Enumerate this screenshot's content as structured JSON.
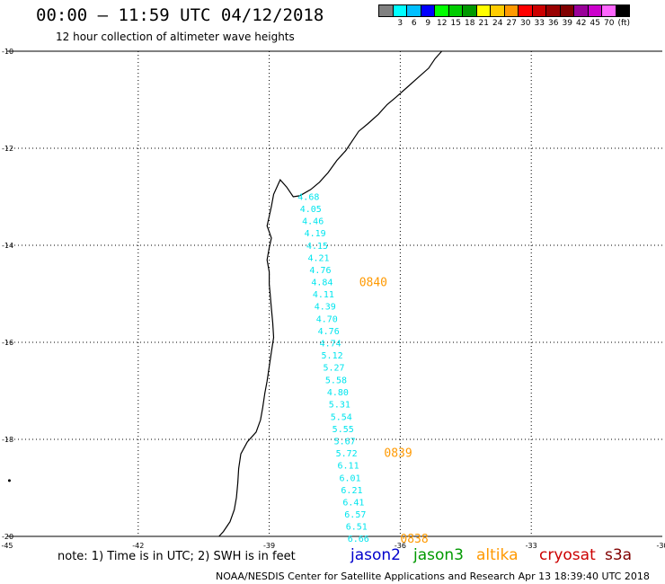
{
  "title": "00:00 – 11:59 UTC 04/12/2018",
  "subtitle": "12 hour collection of altimeter wave heights",
  "colorbar": {
    "colors": [
      "#808080",
      "#00ffff",
      "#00bfff",
      "#0000ff",
      "#00ff00",
      "#00cc00",
      "#009900",
      "#ffff00",
      "#ffcc00",
      "#ff9900",
      "#ff0000",
      "#cc0000",
      "#990000",
      "#800000",
      "#990099",
      "#cc00cc",
      "#ff66ff",
      "#000000"
    ],
    "labels": [
      "3",
      "6",
      "9",
      "12",
      "15",
      "18",
      "21",
      "24",
      "27",
      "30",
      "33",
      "36",
      "39",
      "42",
      "45",
      "70"
    ],
    "unit": "(ft)"
  },
  "axes": {
    "lon_ticks": [
      "-45",
      "-42",
      "-39",
      "-36",
      "-33",
      "-30"
    ],
    "lat_ticks": [
      "-10",
      "-12",
      "-14",
      "-16",
      "-18",
      "-20"
    ],
    "lon_range": [
      -45,
      -30
    ],
    "lat_range": [
      -20,
      -10
    ]
  },
  "track": {
    "color": "#00e5ee",
    "points": [
      {
        "v": "4.68",
        "lon": -38.1,
        "lat": -12.99
      },
      {
        "v": "4.05",
        "lon": -38.05,
        "lat": -13.24
      },
      {
        "v": "4.46",
        "lon": -38.0,
        "lat": -13.49
      },
      {
        "v": "4.19",
        "lon": -37.95,
        "lat": -13.74
      },
      {
        "v": "4.15",
        "lon": -37.9,
        "lat": -14.0
      },
      {
        "v": "4.21",
        "lon": -37.87,
        "lat": -14.25
      },
      {
        "v": "4.76",
        "lon": -37.83,
        "lat": -14.5
      },
      {
        "v": "4.84",
        "lon": -37.79,
        "lat": -14.75
      },
      {
        "v": "4.11",
        "lon": -37.76,
        "lat": -15.0
      },
      {
        "v": "4.39",
        "lon": -37.72,
        "lat": -15.25
      },
      {
        "v": "4.70",
        "lon": -37.68,
        "lat": -15.51
      },
      {
        "v": "4.76",
        "lon": -37.64,
        "lat": -15.76
      },
      {
        "v": "4.74",
        "lon": -37.6,
        "lat": -16.01
      },
      {
        "v": "5.12",
        "lon": -37.56,
        "lat": -16.26
      },
      {
        "v": "5.27",
        "lon": -37.52,
        "lat": -16.51
      },
      {
        "v": "5.58",
        "lon": -37.47,
        "lat": -16.77
      },
      {
        "v": "4.80",
        "lon": -37.43,
        "lat": -17.02
      },
      {
        "v": "5.31",
        "lon": -37.39,
        "lat": -17.27
      },
      {
        "v": "5.54",
        "lon": -37.35,
        "lat": -17.53
      },
      {
        "v": "5.55",
        "lon": -37.31,
        "lat": -17.78
      },
      {
        "v": "5.67",
        "lon": -37.27,
        "lat": -18.03
      },
      {
        "v": "5.72",
        "lon": -37.23,
        "lat": -18.28
      },
      {
        "v": "6.11",
        "lon": -37.19,
        "lat": -18.53
      },
      {
        "v": "6.01",
        "lon": -37.15,
        "lat": -18.79
      },
      {
        "v": "6.21",
        "lon": -37.11,
        "lat": -19.04
      },
      {
        "v": "6.41",
        "lon": -37.07,
        "lat": -19.29
      },
      {
        "v": "6.57",
        "lon": -37.03,
        "lat": -19.54
      },
      {
        "v": "6.51",
        "lon": -37.0,
        "lat": -19.79
      },
      {
        "v": "6.66",
        "lon": -36.96,
        "lat": -20.04
      }
    ]
  },
  "time_labels": [
    {
      "text": "0840",
      "lon": -36.94,
      "lat": -14.75,
      "color": "#ff9900"
    },
    {
      "text": "0839",
      "lon": -36.37,
      "lat": -18.27,
      "color": "#ff9900"
    },
    {
      "text": "0838",
      "lon": -36.0,
      "lat": -20.04,
      "color": "#ff9900"
    }
  ],
  "note": "note: 1) Time is in UTC; 2) SWH is in feet",
  "legend": [
    {
      "name": "jason2",
      "color": "#0000cc"
    },
    {
      "name": "jason3",
      "color": "#009900"
    },
    {
      "name": "altika",
      "color": "#ff9900"
    },
    {
      "name": "cryosat",
      "color": "#cc0000"
    },
    {
      "name": "s3a",
      "color": "#800000"
    }
  ],
  "footer": "NOAA/NESDIS Center for Satellite Applications and Research    Apr 13 18:39:40 UTC 2018"
}
